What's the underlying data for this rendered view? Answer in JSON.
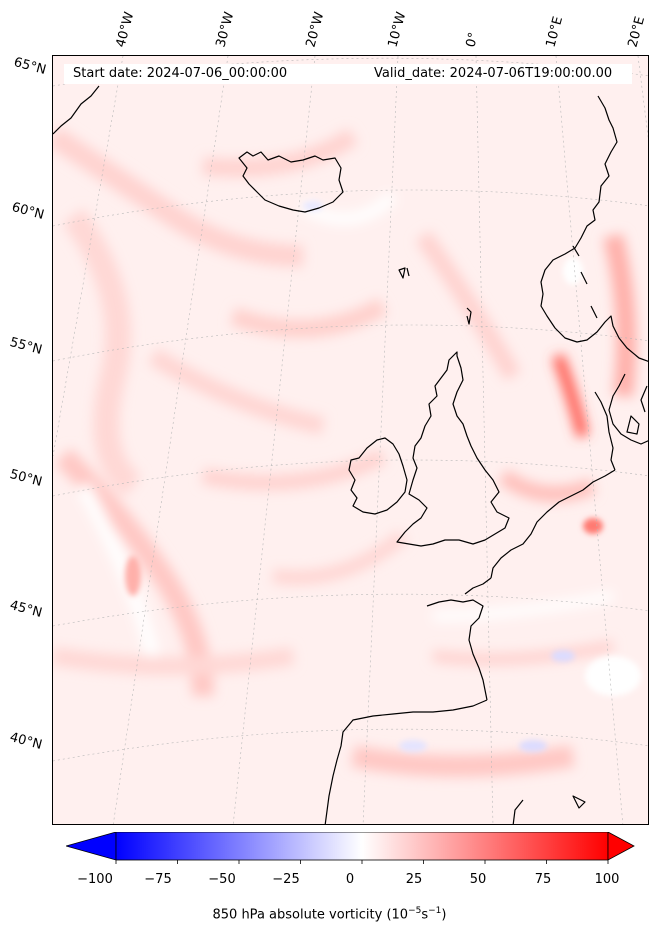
{
  "header": {
    "start_date": "Start date: 2024-07-06_00:00:00",
    "valid_date": "Valid_date: 2024-07-06T19:00:00.00"
  },
  "longitude_labels": [
    "40°W",
    "30°W",
    "20°W",
    "10°W",
    "0°",
    "10°E",
    "20°E"
  ],
  "latitude_labels": [
    "65°N",
    "60°N",
    "55°N",
    "50°N",
    "45°N",
    "40°N"
  ],
  "colorbar": {
    "ticks": [
      "−100",
      "−75",
      "−50",
      "−25",
      "0",
      "25",
      "50",
      "75",
      "100"
    ],
    "range": [
      -100,
      100
    ],
    "low_color": "#0000ff",
    "mid_color": "#ffffff",
    "high_color": "#ff0000",
    "label_main": "850 hPa absolute vorticity (10",
    "label_exp1": "−5",
    "label_mid": "s",
    "label_exp2": "−1",
    "label_end": ")"
  },
  "colors": {
    "background_field": "#fff3f2",
    "coastline": "#000000"
  }
}
